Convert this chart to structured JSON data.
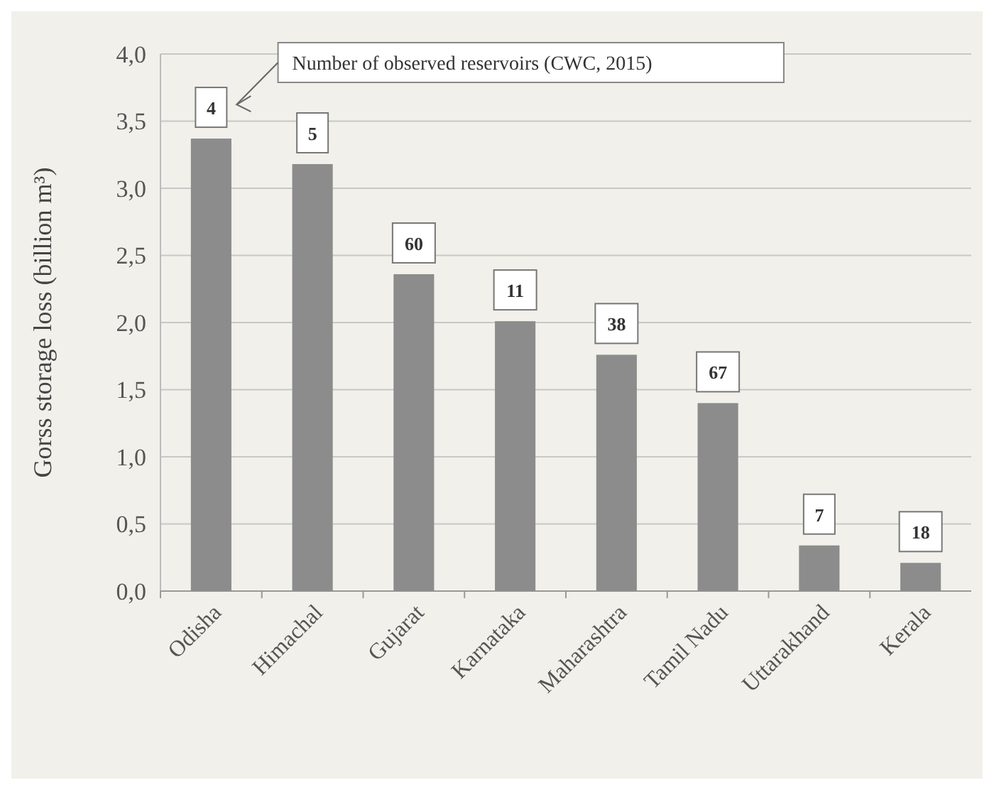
{
  "chart_data": {
    "type": "bar",
    "ylabel": "Gorss storage loss (billion m³)",
    "categories": [
      "Odisha",
      "Himachal",
      "Gujarat",
      "Karnataka",
      "Maharashtra",
      "Tamil Nadu",
      "Uttarakhand",
      "Kerala"
    ],
    "values": [
      3.37,
      3.18,
      2.36,
      2.01,
      1.76,
      1.4,
      0.34,
      0.21
    ],
    "color": "#8c8c8c",
    "ylim": [
      0,
      4
    ],
    "yticks": [
      {
        "value": 0,
        "label": "0,0"
      },
      {
        "value": 0.5,
        "label": "0,5"
      },
      {
        "value": 1,
        "label": "1,0"
      },
      {
        "value": 1.5,
        "label": "1,5"
      },
      {
        "value": 2,
        "label": "2,0"
      },
      {
        "value": 2.5,
        "label": "2,5"
      },
      {
        "value": 3,
        "label": "3,0"
      },
      {
        "value": 3.5,
        "label": "3,5"
      },
      {
        "value": 4,
        "label": "4,0"
      }
    ],
    "grid": "y",
    "annotations": [
      "Number of observed reservoirs (CWC, 2015)",
      {
        "text": "4",
        "x": "Odisha",
        "y": 3.37
      },
      {
        "text": "5",
        "x": "Himachal",
        "y": 3.18
      },
      {
        "text": "60",
        "x": "Gujarat",
        "y": 2.36
      },
      {
        "text": "11",
        "x": "Karnataka",
        "y": 2.01
      },
      {
        "text": "38",
        "x": "Maharashtra",
        "y": 1.76
      },
      {
        "text": "67",
        "x": "Tamil Nadu",
        "y": 1.4
      },
      {
        "text": "7",
        "x": "Uttarakhand",
        "y": 0.34
      },
      {
        "text": "18",
        "x": "Kerala",
        "y": 0.21
      }
    ]
  }
}
